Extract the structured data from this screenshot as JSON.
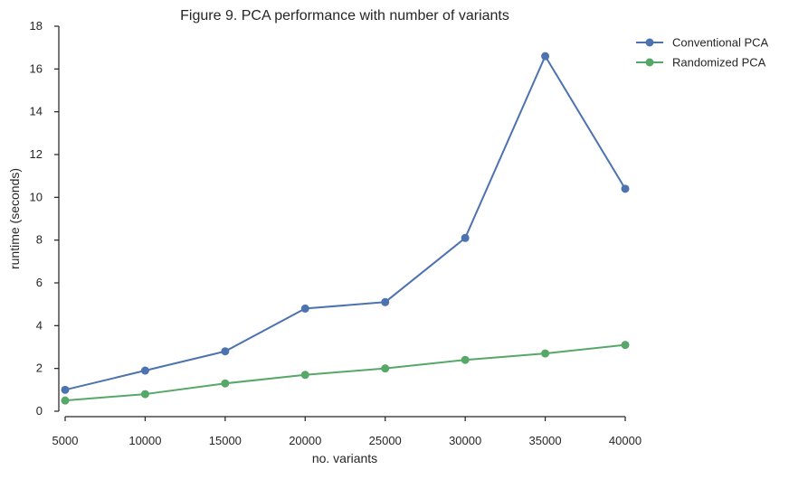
{
  "chart_data": {
    "type": "line",
    "title": "Figure 9. PCA performance with number of variants",
    "xlabel": "no. variants",
    "ylabel": "runtime (seconds)",
    "x": [
      5000,
      10000,
      15000,
      20000,
      25000,
      30000,
      35000,
      40000
    ],
    "xlim": [
      5000,
      40000
    ],
    "ylim": [
      0,
      18
    ],
    "xticks": [
      "5000",
      "10000",
      "15000",
      "20000",
      "25000",
      "30000",
      "35000",
      "40000"
    ],
    "yticks": [
      "0",
      "2",
      "4",
      "6",
      "8",
      "10",
      "12",
      "14",
      "16",
      "18"
    ],
    "grid": false,
    "legend_position": "top-right",
    "series": [
      {
        "name": "Conventional PCA",
        "color": "#4c72b0",
        "values": [
          1.0,
          1.9,
          2.8,
          4.8,
          5.1,
          8.1,
          16.6,
          10.4
        ]
      },
      {
        "name": "Randomized PCA",
        "color": "#55a868",
        "values": [
          0.5,
          0.8,
          1.3,
          1.7,
          2.0,
          2.4,
          2.7,
          3.1
        ]
      }
    ]
  }
}
